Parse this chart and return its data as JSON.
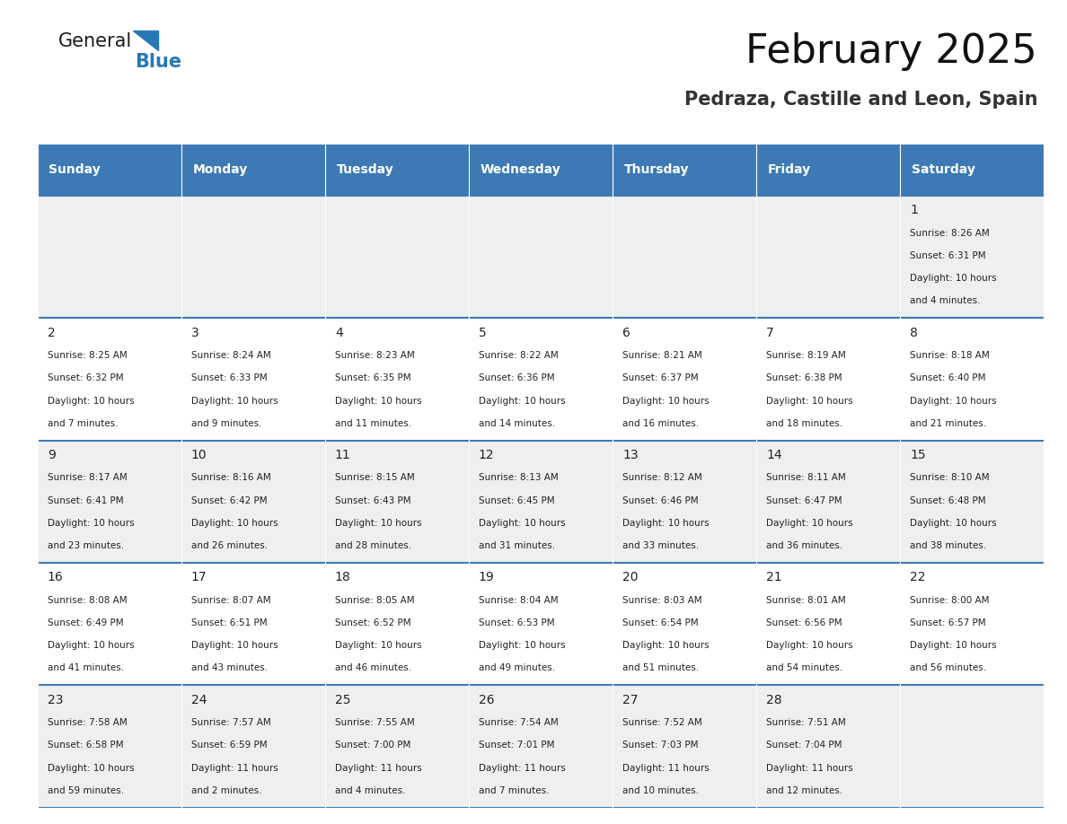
{
  "title": "February 2025",
  "subtitle": "Pedraza, Castille and Leon, Spain",
  "header_color": "#3d7ab5",
  "header_text_color": "#ffffff",
  "background_color": "#ffffff",
  "cell_bg_odd": "#efefef",
  "cell_bg_even": "#ffffff",
  "border_color": "#3d7ab5",
  "day_headers": [
    "Sunday",
    "Monday",
    "Tuesday",
    "Wednesday",
    "Thursday",
    "Friday",
    "Saturday"
  ],
  "weeks": [
    [
      {
        "day": "",
        "info": ""
      },
      {
        "day": "",
        "info": ""
      },
      {
        "day": "",
        "info": ""
      },
      {
        "day": "",
        "info": ""
      },
      {
        "day": "",
        "info": ""
      },
      {
        "day": "",
        "info": ""
      },
      {
        "day": "1",
        "info": "Sunrise: 8:26 AM\nSunset: 6:31 PM\nDaylight: 10 hours\nand 4 minutes."
      }
    ],
    [
      {
        "day": "2",
        "info": "Sunrise: 8:25 AM\nSunset: 6:32 PM\nDaylight: 10 hours\nand 7 minutes."
      },
      {
        "day": "3",
        "info": "Sunrise: 8:24 AM\nSunset: 6:33 PM\nDaylight: 10 hours\nand 9 minutes."
      },
      {
        "day": "4",
        "info": "Sunrise: 8:23 AM\nSunset: 6:35 PM\nDaylight: 10 hours\nand 11 minutes."
      },
      {
        "day": "5",
        "info": "Sunrise: 8:22 AM\nSunset: 6:36 PM\nDaylight: 10 hours\nand 14 minutes."
      },
      {
        "day": "6",
        "info": "Sunrise: 8:21 AM\nSunset: 6:37 PM\nDaylight: 10 hours\nand 16 minutes."
      },
      {
        "day": "7",
        "info": "Sunrise: 8:19 AM\nSunset: 6:38 PM\nDaylight: 10 hours\nand 18 minutes."
      },
      {
        "day": "8",
        "info": "Sunrise: 8:18 AM\nSunset: 6:40 PM\nDaylight: 10 hours\nand 21 minutes."
      }
    ],
    [
      {
        "day": "9",
        "info": "Sunrise: 8:17 AM\nSunset: 6:41 PM\nDaylight: 10 hours\nand 23 minutes."
      },
      {
        "day": "10",
        "info": "Sunrise: 8:16 AM\nSunset: 6:42 PM\nDaylight: 10 hours\nand 26 minutes."
      },
      {
        "day": "11",
        "info": "Sunrise: 8:15 AM\nSunset: 6:43 PM\nDaylight: 10 hours\nand 28 minutes."
      },
      {
        "day": "12",
        "info": "Sunrise: 8:13 AM\nSunset: 6:45 PM\nDaylight: 10 hours\nand 31 minutes."
      },
      {
        "day": "13",
        "info": "Sunrise: 8:12 AM\nSunset: 6:46 PM\nDaylight: 10 hours\nand 33 minutes."
      },
      {
        "day": "14",
        "info": "Sunrise: 8:11 AM\nSunset: 6:47 PM\nDaylight: 10 hours\nand 36 minutes."
      },
      {
        "day": "15",
        "info": "Sunrise: 8:10 AM\nSunset: 6:48 PM\nDaylight: 10 hours\nand 38 minutes."
      }
    ],
    [
      {
        "day": "16",
        "info": "Sunrise: 8:08 AM\nSunset: 6:49 PM\nDaylight: 10 hours\nand 41 minutes."
      },
      {
        "day": "17",
        "info": "Sunrise: 8:07 AM\nSunset: 6:51 PM\nDaylight: 10 hours\nand 43 minutes."
      },
      {
        "day": "18",
        "info": "Sunrise: 8:05 AM\nSunset: 6:52 PM\nDaylight: 10 hours\nand 46 minutes."
      },
      {
        "day": "19",
        "info": "Sunrise: 8:04 AM\nSunset: 6:53 PM\nDaylight: 10 hours\nand 49 minutes."
      },
      {
        "day": "20",
        "info": "Sunrise: 8:03 AM\nSunset: 6:54 PM\nDaylight: 10 hours\nand 51 minutes."
      },
      {
        "day": "21",
        "info": "Sunrise: 8:01 AM\nSunset: 6:56 PM\nDaylight: 10 hours\nand 54 minutes."
      },
      {
        "day": "22",
        "info": "Sunrise: 8:00 AM\nSunset: 6:57 PM\nDaylight: 10 hours\nand 56 minutes."
      }
    ],
    [
      {
        "day": "23",
        "info": "Sunrise: 7:58 AM\nSunset: 6:58 PM\nDaylight: 10 hours\nand 59 minutes."
      },
      {
        "day": "24",
        "info": "Sunrise: 7:57 AM\nSunset: 6:59 PM\nDaylight: 11 hours\nand 2 minutes."
      },
      {
        "day": "25",
        "info": "Sunrise: 7:55 AM\nSunset: 7:00 PM\nDaylight: 11 hours\nand 4 minutes."
      },
      {
        "day": "26",
        "info": "Sunrise: 7:54 AM\nSunset: 7:01 PM\nDaylight: 11 hours\nand 7 minutes."
      },
      {
        "day": "27",
        "info": "Sunrise: 7:52 AM\nSunset: 7:03 PM\nDaylight: 11 hours\nand 10 minutes."
      },
      {
        "day": "28",
        "info": "Sunrise: 7:51 AM\nSunset: 7:04 PM\nDaylight: 11 hours\nand 12 minutes."
      },
      {
        "day": "",
        "info": ""
      }
    ]
  ],
  "logo_text_general": "General",
  "logo_text_blue": "Blue",
  "logo_color_general": "#1a1a1a",
  "logo_color_blue": "#2878b5",
  "title_fontsize": 32,
  "subtitle_fontsize": 15,
  "header_fontsize": 10,
  "day_num_fontsize": 10,
  "info_fontsize": 7.5
}
